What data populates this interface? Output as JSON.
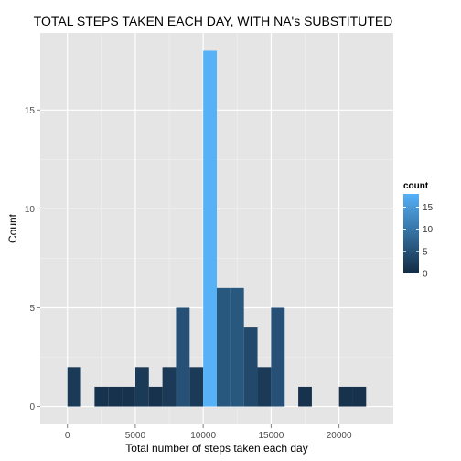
{
  "chart_data": {
    "type": "bar",
    "title": "TOTAL STEPS TAKEN EACH DAY, WITH NA's SUBSTITUTED",
    "xlabel": "Total number of steps taken each day",
    "ylabel": "Count",
    "binwidth": 1000,
    "bin_starts": [
      0,
      1000,
      2000,
      3000,
      4000,
      5000,
      6000,
      7000,
      8000,
      9000,
      10000,
      11000,
      12000,
      13000,
      14000,
      15000,
      16000,
      17000,
      18000,
      19000,
      20000,
      21000
    ],
    "values": [
      2,
      0,
      1,
      1,
      1,
      2,
      1,
      2,
      5,
      2,
      18,
      6,
      6,
      4,
      2,
      5,
      0,
      1,
      0,
      0,
      1,
      1
    ],
    "xlim": [
      -2000,
      24000
    ],
    "ylim": [
      -0.9,
      18.9
    ],
    "x_ticks": [
      0,
      5000,
      10000,
      15000,
      20000
    ],
    "x_tick_labels": [
      "0",
      "5000",
      "10000",
      "15000",
      "20000"
    ],
    "y_ticks": [
      0,
      5,
      10,
      15
    ],
    "y_tick_labels": [
      "0",
      "5",
      "10",
      "15"
    ],
    "grid": true,
    "background_color": "#E5E5E5",
    "legend": {
      "title": "count",
      "placement": "right",
      "type": "colorbar",
      "range": [
        0,
        18
      ],
      "ticks": [
        0,
        5,
        10,
        15
      ],
      "tick_labels": [
        "0",
        "5",
        "10",
        "15"
      ],
      "low_color": "#132B43",
      "high_color": "#56B1F7"
    }
  }
}
